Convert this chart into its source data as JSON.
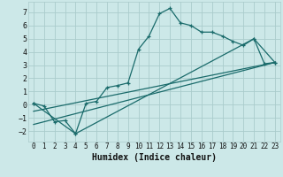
{
  "xlabel": "Humidex (Indice chaleur)",
  "background_color": "#cce8e8",
  "grid_color": "#aacccc",
  "line_color": "#1a6b6b",
  "xlim": [
    -0.5,
    23.5
  ],
  "ylim": [
    -2.8,
    7.8
  ],
  "xticks": [
    0,
    1,
    2,
    3,
    4,
    5,
    6,
    7,
    8,
    9,
    10,
    11,
    12,
    13,
    14,
    15,
    16,
    17,
    18,
    19,
    20,
    21,
    22,
    23
  ],
  "yticks": [
    -2,
    -1,
    0,
    1,
    2,
    3,
    4,
    5,
    6,
    7
  ],
  "series1_x": [
    0,
    1,
    2,
    3,
    4,
    5,
    6,
    7,
    8,
    9,
    10,
    11,
    12,
    13,
    14,
    15,
    16,
    17,
    18,
    19,
    20,
    21,
    22,
    23
  ],
  "series1_y": [
    0.1,
    -0.1,
    -1.3,
    -1.2,
    -2.2,
    0.1,
    0.25,
    1.3,
    1.45,
    1.65,
    4.2,
    5.2,
    6.9,
    7.3,
    6.2,
    6.0,
    5.5,
    5.5,
    5.2,
    4.8,
    4.5,
    5.0,
    3.1,
    3.2
  ],
  "series2_x": [
    0,
    4,
    21,
    23
  ],
  "series2_y": [
    0.1,
    -2.2,
    5.0,
    3.2
  ],
  "series3_x": [
    0,
    23
  ],
  "series3_y": [
    -1.5,
    3.2
  ],
  "series4_x": [
    0,
    23
  ],
  "series4_y": [
    -0.5,
    3.2
  ],
  "xlabel_fontsize": 7,
  "tick_fontsize": 5.5
}
